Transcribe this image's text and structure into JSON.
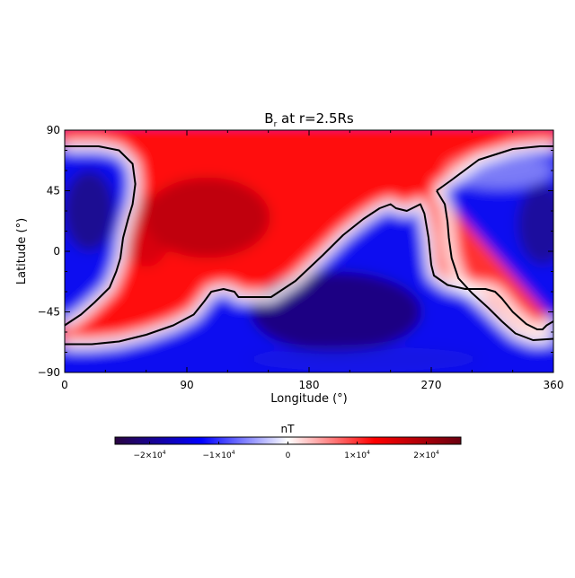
{
  "chart_data": {
    "type": "heatmap",
    "title_main": "B",
    "title_sub": "r",
    "title_rest": " at r=2.5Rs",
    "xlabel": "Longitude (°)",
    "ylabel": "Latitude (°)",
    "xlim": [
      0,
      360
    ],
    "ylim": [
      -90,
      90
    ],
    "xticks": [
      {
        "value": 0,
        "label": "0"
      },
      {
        "value": 90,
        "label": "90"
      },
      {
        "value": 180,
        "label": "180"
      },
      {
        "value": 270,
        "label": "270"
      },
      {
        "value": 360,
        "label": "360"
      }
    ],
    "yticks": [
      {
        "value": 90,
        "label": "90"
      },
      {
        "value": 45,
        "label": "45"
      },
      {
        "value": 0,
        "label": "0"
      },
      {
        "value": -45,
        "label": "−45"
      },
      {
        "value": -90,
        "label": "−90"
      }
    ],
    "colorbar": {
      "label": "nT",
      "range": [
        -25000,
        25000
      ],
      "colors": [
        "#2a0540",
        "#0000ff",
        "#ffffff",
        "#ff0000",
        "#6a0010"
      ],
      "ticks": [
        {
          "value": -20000,
          "base": "−2×10",
          "exp": "4"
        },
        {
          "value": -10000,
          "base": "−1×10",
          "exp": "4"
        },
        {
          "value": 0,
          "base": "0",
          "exp": ""
        },
        {
          "value": 10000,
          "base": "1×10",
          "exp": "4"
        },
        {
          "value": 20000,
          "base": "2×10",
          "exp": "4"
        }
      ]
    },
    "neutral_line_west": [
      [
        0,
        -55
      ],
      [
        12,
        -47
      ],
      [
        22,
        -38
      ],
      [
        33,
        -27
      ],
      [
        38,
        -15
      ],
      [
        41,
        -5
      ],
      [
        43,
        10
      ],
      [
        47,
        25
      ],
      [
        50,
        35
      ],
      [
        52,
        50
      ],
      [
        50,
        65
      ],
      [
        40,
        75
      ],
      [
        25,
        78
      ],
      [
        5,
        78
      ],
      [
        0,
        78
      ]
    ],
    "neutral_line_main": [
      [
        0,
        -69
      ],
      [
        20,
        -69
      ],
      [
        40,
        -67
      ],
      [
        60,
        -62
      ],
      [
        80,
        -55
      ],
      [
        95,
        -47
      ],
      [
        103,
        -37
      ],
      [
        108,
        -30
      ],
      [
        117,
        -28
      ],
      [
        125,
        -30
      ],
      [
        128,
        -34
      ],
      [
        152,
        -34
      ],
      [
        170,
        -22
      ],
      [
        190,
        -3
      ],
      [
        205,
        12
      ],
      [
        220,
        24
      ],
      [
        232,
        32
      ],
      [
        240,
        35
      ],
      [
        244,
        32
      ],
      [
        252,
        30
      ],
      [
        262,
        35
      ],
      [
        265,
        28
      ],
      [
        268,
        10
      ],
      [
        270,
        -10
      ],
      [
        272,
        -18
      ],
      [
        282,
        -25
      ],
      [
        295,
        -28
      ],
      [
        310,
        -28
      ],
      [
        317,
        -30
      ],
      [
        322,
        -35
      ],
      [
        330,
        -45
      ],
      [
        340,
        -54
      ],
      [
        348,
        -58
      ],
      [
        352,
        -58
      ],
      [
        355,
        -55
      ],
      [
        360,
        -52
      ]
    ],
    "neutral_line_east": [
      [
        274,
        45
      ],
      [
        285,
        53
      ],
      [
        305,
        68
      ],
      [
        330,
        76
      ],
      [
        350,
        78
      ],
      [
        360,
        78
      ]
    ],
    "neutral_line_southeast": [
      [
        360,
        -65
      ],
      [
        345,
        -66
      ],
      [
        332,
        -61
      ],
      [
        322,
        -52
      ],
      [
        312,
        -42
      ],
      [
        300,
        -31
      ],
      [
        290,
        -20
      ],
      [
        285,
        -5
      ],
      [
        283,
        10
      ],
      [
        282,
        22
      ],
      [
        280,
        35
      ],
      [
        274,
        45
      ]
    ]
  }
}
